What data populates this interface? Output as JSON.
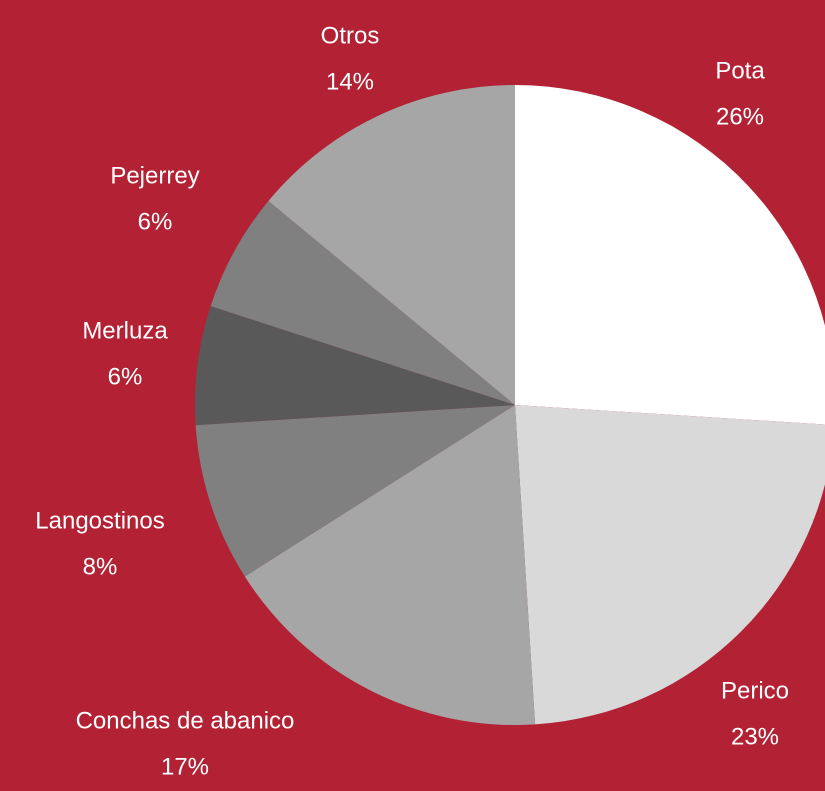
{
  "chart_data": {
    "type": "pie",
    "categories": [
      "Pota",
      "Perico",
      "Conchas de abanico",
      "Langostinos",
      "Merluza",
      "Pejerrey",
      "Otros"
    ],
    "values": [
      26,
      23,
      17,
      8,
      6,
      6,
      14
    ],
    "value_labels": [
      "26%",
      "23%",
      "17%",
      "8%",
      "6%",
      "6%",
      "14%"
    ],
    "colors": [
      "#ffffff",
      "#d9d9d9",
      "#a6a6a6",
      "#808080",
      "#595959",
      "#808080",
      "#a6a6a6"
    ]
  }
}
